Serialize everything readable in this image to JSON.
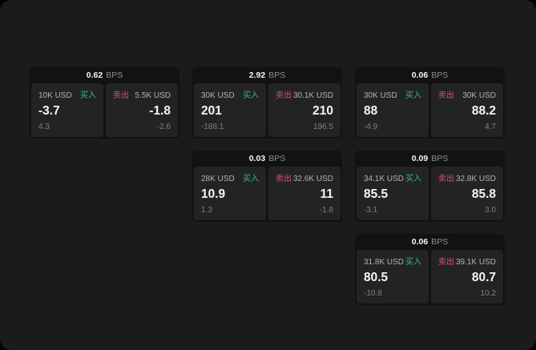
{
  "labels": {
    "buy": "买入",
    "sell": "卖出",
    "bps_unit": "BPS"
  },
  "colors": {
    "buy": "#2ebd85",
    "sell": "#d5566d",
    "panel_bg": "#232323",
    "card_bg": "#121212",
    "stage_bg": "#1b1b1b"
  },
  "cards": [
    {
      "row": 1,
      "col": 1,
      "bps": "0.62",
      "buy": {
        "amount": "10K USD",
        "price": "-3.7",
        "delta": "4.3"
      },
      "sell": {
        "amount": "5.5K USD",
        "price": "-1.8",
        "delta": "-2.6"
      }
    },
    {
      "row": 1,
      "col": 2,
      "bps": "2.92",
      "buy": {
        "amount": "30K USD",
        "price": "201",
        "delta": "-188.1"
      },
      "sell": {
        "amount": "30.1K USD",
        "price": "210",
        "delta": "196.5"
      }
    },
    {
      "row": 1,
      "col": 3,
      "bps": "0.06",
      "buy": {
        "amount": "30K USD",
        "price": "88",
        "delta": "-4.9"
      },
      "sell": {
        "amount": "30K USD",
        "price": "88.2",
        "delta": "4.7"
      }
    },
    {
      "row": 2,
      "col": 2,
      "bps": "0.03",
      "buy": {
        "amount": "28K USD",
        "price": "10.9",
        "delta": "1.3"
      },
      "sell": {
        "amount": "32.6K USD",
        "price": "11",
        "delta": "-1.8"
      }
    },
    {
      "row": 2,
      "col": 3,
      "bps": "0.09",
      "buy": {
        "amount": "34.1K USD",
        "price": "85.5",
        "delta": "-3.1"
      },
      "sell": {
        "amount": "32.8K USD",
        "price": "85.8",
        "delta": "3.0"
      }
    },
    {
      "row": 3,
      "col": 3,
      "bps": "0.06",
      "buy": {
        "amount": "31.8K USD",
        "price": "80.5",
        "delta": "-10.8"
      },
      "sell": {
        "amount": "39.1K USD",
        "price": "80.7",
        "delta": "10.2"
      }
    }
  ]
}
